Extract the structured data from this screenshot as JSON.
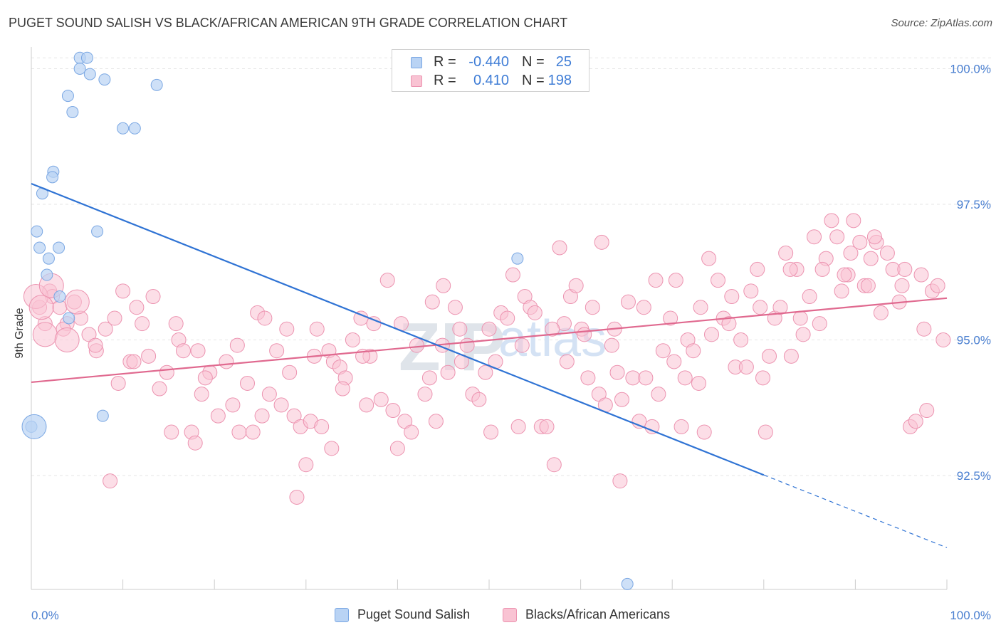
{
  "title": "PUGET SOUND SALISH VS BLACK/AFRICAN AMERICAN 9TH GRADE CORRELATION CHART",
  "source": "Source: ZipAtlas.com",
  "watermark": {
    "zip": "ZIP",
    "atlas": "atlas"
  },
  "legend": {
    "r_label": "R =",
    "n_label": "N =",
    "items": [
      {
        "name": "Puget Sound Salish",
        "r": "-0.440",
        "n": "25",
        "fill": "#b9d3f4",
        "stroke": "#7aa7e3"
      },
      {
        "name": "Blacks/African Americans",
        "r": "0.410",
        "n": "198",
        "fill": "#f9c3d3",
        "stroke": "#ec93b0"
      }
    ]
  },
  "colors": {
    "blue_line": "#2f73d4",
    "pink_line": "#e0698f",
    "tick_text": "#4a7fd0",
    "grid": "#e6e6e6"
  },
  "chart_data": {
    "type": "scatter",
    "xlabel": "",
    "ylabel": "9th Grade",
    "xlim": [
      0,
      100
    ],
    "ylim": [
      90.4,
      100.4
    ],
    "x_tick_labels": [
      {
        "value": 0,
        "label": "0.0%"
      },
      {
        "value": 100,
        "label": "100.0%"
      }
    ],
    "y_ticks": [
      {
        "value": 100.0,
        "label": "100.0%"
      },
      {
        "value": 97.5,
        "label": "97.5%"
      },
      {
        "value": 95.0,
        "label": "95.0%"
      },
      {
        "value": 92.5,
        "label": "92.5%"
      }
    ],
    "x_minor_ticks": [
      0,
      10,
      20,
      30,
      40,
      50,
      60,
      70,
      80,
      90,
      100
    ],
    "series": [
      {
        "name": "Puget Sound Salish",
        "trend": {
          "x0": 0,
          "y0": 97.88,
          "x1": 80,
          "y1": 92.51,
          "dash_to_x": 100,
          "dash_to_y": 91.17
        },
        "points": [
          [
            5.3,
            100.2
          ],
          [
            6.1,
            100.2
          ],
          [
            5.3,
            100.0
          ],
          [
            6.4,
            99.9
          ],
          [
            8.0,
            99.8
          ],
          [
            4.0,
            99.5
          ],
          [
            13.7,
            99.7
          ],
          [
            4.5,
            99.2
          ],
          [
            11.3,
            98.9
          ],
          [
            10.0,
            98.9
          ],
          [
            2.4,
            98.1
          ],
          [
            2.3,
            98.0
          ],
          [
            1.2,
            97.7
          ],
          [
            0.6,
            97.0
          ],
          [
            7.2,
            97.0
          ],
          [
            0.9,
            96.7
          ],
          [
            3.0,
            96.7
          ],
          [
            1.9,
            96.5
          ],
          [
            1.7,
            96.2
          ],
          [
            3.1,
            95.8
          ],
          [
            4.1,
            95.4
          ],
          [
            53.1,
            96.5
          ],
          [
            7.8,
            93.6
          ],
          [
            0.0,
            93.4
          ],
          [
            65.1,
            90.5
          ]
        ],
        "large_points": [
          [
            0.0,
            93.4
          ]
        ]
      },
      {
        "name": "Blacks/African Americans",
        "trend": {
          "x0": 0,
          "y0": 94.22,
          "x1": 100,
          "y1": 95.77
        },
        "points": [
          [
            0.9,
            95.6
          ],
          [
            1.5,
            95.3
          ],
          [
            2.0,
            95.9
          ],
          [
            2.3,
            95.8
          ],
          [
            3.1,
            95.6
          ],
          [
            3.9,
            95.3
          ],
          [
            4.7,
            95.7
          ],
          [
            5.4,
            95.4
          ],
          [
            6.3,
            95.1
          ],
          [
            7.1,
            94.8
          ],
          [
            8.1,
            95.2
          ],
          [
            9.1,
            95.4
          ],
          [
            10.0,
            95.9
          ],
          [
            10.8,
            94.6
          ],
          [
            11.5,
            95.6
          ],
          [
            12.1,
            95.3
          ],
          [
            13.3,
            95.8
          ],
          [
            14.0,
            94.1
          ],
          [
            14.8,
            94.4
          ],
          [
            15.3,
            93.3
          ],
          [
            16.1,
            95.0
          ],
          [
            16.6,
            94.8
          ],
          [
            17.5,
            93.3
          ],
          [
            18.2,
            94.8
          ],
          [
            18.6,
            94.0
          ],
          [
            19.5,
            94.4
          ],
          [
            20.4,
            93.6
          ],
          [
            21.3,
            94.6
          ],
          [
            22.0,
            93.8
          ],
          [
            22.7,
            93.3
          ],
          [
            23.6,
            94.2
          ],
          [
            24.2,
            93.3
          ],
          [
            24.7,
            95.5
          ],
          [
            25.5,
            95.4
          ],
          [
            26.0,
            94.0
          ],
          [
            26.8,
            94.8
          ],
          [
            27.3,
            93.8
          ],
          [
            28.2,
            94.4
          ],
          [
            28.7,
            93.6
          ],
          [
            29.4,
            93.4
          ],
          [
            30.0,
            92.7
          ],
          [
            30.5,
            93.5
          ],
          [
            31.2,
            95.2
          ],
          [
            31.7,
            93.4
          ],
          [
            32.5,
            94.8
          ],
          [
            33.0,
            94.6
          ],
          [
            33.7,
            94.5
          ],
          [
            34.3,
            94.3
          ],
          [
            35.1,
            95.0
          ],
          [
            36.0,
            95.4
          ],
          [
            36.6,
            93.8
          ],
          [
            37.4,
            95.3
          ],
          [
            38.2,
            93.9
          ],
          [
            38.9,
            96.1
          ],
          [
            39.5,
            93.7
          ],
          [
            40.0,
            93.0
          ],
          [
            40.8,
            93.5
          ],
          [
            41.5,
            93.3
          ],
          [
            42.1,
            94.9
          ],
          [
            43.0,
            94.0
          ],
          [
            43.5,
            94.3
          ],
          [
            44.2,
            93.5
          ],
          [
            44.9,
            94.9
          ],
          [
            45.5,
            94.4
          ],
          [
            46.3,
            95.6
          ],
          [
            47.0,
            94.6
          ],
          [
            47.6,
            94.9
          ],
          [
            48.2,
            94.0
          ],
          [
            48.9,
            93.9
          ],
          [
            49.6,
            94.4
          ],
          [
            50.0,
            95.2
          ],
          [
            50.7,
            94.6
          ],
          [
            51.3,
            95.5
          ],
          [
            52.0,
            95.4
          ],
          [
            52.6,
            96.2
          ],
          [
            53.2,
            93.4
          ],
          [
            53.9,
            95.8
          ],
          [
            54.5,
            95.6
          ],
          [
            55.0,
            95.5
          ],
          [
            55.7,
            93.4
          ],
          [
            56.3,
            93.4
          ],
          [
            57.1,
            92.7
          ],
          [
            57.7,
            96.7
          ],
          [
            58.2,
            95.3
          ],
          [
            58.9,
            95.8
          ],
          [
            59.5,
            96.0
          ],
          [
            60.1,
            95.2
          ],
          [
            60.8,
            94.3
          ],
          [
            61.3,
            95.6
          ],
          [
            62.0,
            94.0
          ],
          [
            62.7,
            93.8
          ],
          [
            63.4,
            94.9
          ],
          [
            64.0,
            94.4
          ],
          [
            64.5,
            93.9
          ],
          [
            65.2,
            95.7
          ],
          [
            65.7,
            94.3
          ],
          [
            66.4,
            93.5
          ],
          [
            67.1,
            94.3
          ],
          [
            67.8,
            93.4
          ],
          [
            68.5,
            94.0
          ],
          [
            69.0,
            94.8
          ],
          [
            69.8,
            95.4
          ],
          [
            70.4,
            96.1
          ],
          [
            71.0,
            93.4
          ],
          [
            71.7,
            95.0
          ],
          [
            72.3,
            94.8
          ],
          [
            72.9,
            94.2
          ],
          [
            73.5,
            93.3
          ],
          [
            74.3,
            95.1
          ],
          [
            75.0,
            96.1
          ],
          [
            75.6,
            95.4
          ],
          [
            76.2,
            95.3
          ],
          [
            76.9,
            94.5
          ],
          [
            77.5,
            95.0
          ],
          [
            78.1,
            94.5
          ],
          [
            78.6,
            95.9
          ],
          [
            79.3,
            96.3
          ],
          [
            79.9,
            94.3
          ],
          [
            80.6,
            94.7
          ],
          [
            81.2,
            95.4
          ],
          [
            81.8,
            95.6
          ],
          [
            82.4,
            96.6
          ],
          [
            83.0,
            94.7
          ],
          [
            83.6,
            96.3
          ],
          [
            84.3,
            95.1
          ],
          [
            85.0,
            95.8
          ],
          [
            85.5,
            96.9
          ],
          [
            86.1,
            95.3
          ],
          [
            86.8,
            96.5
          ],
          [
            87.4,
            97.2
          ],
          [
            88.0,
            96.9
          ],
          [
            88.5,
            95.9
          ],
          [
            89.2,
            96.2
          ],
          [
            89.8,
            97.2
          ],
          [
            90.5,
            96.8
          ],
          [
            91.0,
            96.0
          ],
          [
            91.7,
            96.5
          ],
          [
            92.3,
            96.8
          ],
          [
            92.8,
            95.5
          ],
          [
            93.5,
            96.6
          ],
          [
            94.1,
            96.3
          ],
          [
            94.8,
            95.7
          ],
          [
            95.4,
            96.3
          ],
          [
            96.0,
            93.4
          ],
          [
            96.6,
            93.5
          ],
          [
            97.2,
            96.2
          ],
          [
            97.8,
            93.7
          ],
          [
            98.4,
            95.9
          ],
          [
            99.0,
            96.0
          ],
          [
            99.6,
            95.0
          ],
          [
            3.5,
            95.2
          ],
          [
            7.0,
            94.9
          ],
          [
            9.5,
            94.2
          ],
          [
            12.8,
            94.7
          ],
          [
            15.8,
            95.3
          ],
          [
            19.0,
            94.3
          ],
          [
            22.5,
            94.9
          ],
          [
            25.2,
            93.6
          ],
          [
            27.9,
            95.2
          ],
          [
            30.9,
            94.7
          ],
          [
            34.0,
            94.1
          ],
          [
            37.0,
            94.7
          ],
          [
            40.4,
            95.3
          ],
          [
            43.8,
            95.7
          ],
          [
            46.8,
            95.2
          ],
          [
            50.2,
            93.3
          ],
          [
            53.6,
            94.9
          ],
          [
            56.9,
            95.2
          ],
          [
            60.4,
            95.1
          ],
          [
            63.7,
            95.2
          ],
          [
            66.9,
            95.6
          ],
          [
            70.2,
            94.6
          ],
          [
            73.1,
            95.6
          ],
          [
            76.5,
            95.8
          ],
          [
            79.6,
            95.6
          ],
          [
            82.9,
            96.3
          ],
          [
            86.4,
            96.3
          ],
          [
            89.5,
            96.6
          ],
          [
            92.1,
            96.9
          ],
          [
            95.1,
            96.0
          ],
          [
            97.5,
            95.2
          ],
          [
            32.8,
            93.0
          ],
          [
            58.5,
            94.6
          ],
          [
            68.2,
            96.1
          ],
          [
            74.0,
            96.5
          ],
          [
            84.0,
            95.4
          ],
          [
            88.8,
            96.2
          ],
          [
            62.3,
            96.8
          ],
          [
            45.0,
            96.0
          ],
          [
            29.0,
            92.1
          ],
          [
            64.3,
            92.4
          ],
          [
            8.6,
            92.4
          ],
          [
            11.2,
            94.6
          ],
          [
            17.9,
            93.1
          ],
          [
            36.2,
            94.7
          ],
          [
            71.4,
            94.3
          ],
          [
            80.2,
            93.3
          ],
          [
            91.4,
            96.0
          ]
        ],
        "large_points": [
          [
            0.5,
            95.8
          ],
          [
            1.1,
            95.6
          ],
          [
            1.5,
            95.1
          ],
          [
            3.9,
            95.0
          ],
          [
            2.2,
            96.0
          ],
          [
            5.0,
            95.7
          ]
        ]
      }
    ]
  }
}
